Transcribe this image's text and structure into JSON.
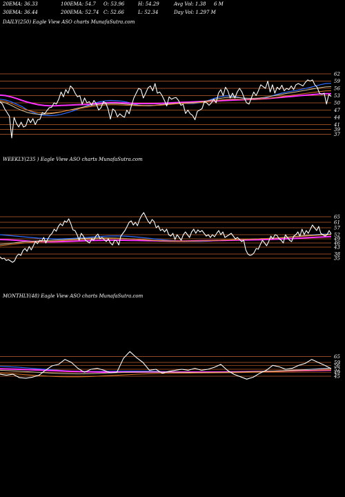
{
  "header": {
    "row1": [
      "20EMA: 36.33",
      "100EMA: 54.7",
      "O: 53.96",
      "H: 54.29",
      "Avg Vol: 1.38",
      "6  M"
    ],
    "row2": [
      "30EMA: 36.44",
      "200EMA: 52.74",
      "C: 52.66",
      "L: 52.34",
      "Day Vol: 1.297 M"
    ]
  },
  "colors": {
    "background": "#000000",
    "price": "#ffffff",
    "level_line": "#c0602a",
    "ema_blue": "#2f6bff",
    "ema_magenta": "#ff33ff",
    "ema_tan": "#d9c9a0",
    "ema_orange": "#e07a2a",
    "ema_grey": "#bbbbbb"
  },
  "chart_data": [
    {
      "type": "line",
      "panel": "daily",
      "label": "DAILY(250) Eagle  View  ASO charts MunafaSutra.com",
      "ticks": [
        "62",
        "59",
        "56",
        "53",
        "50",
        "47",
        "44",
        "41",
        "39",
        "37"
      ],
      "ylim": [
        34,
        64
      ],
      "series": [
        {
          "role": "price",
          "values": [
            50.5,
            49.5,
            47.5,
            46,
            44.5,
            35.5,
            44,
            41.5,
            40,
            42,
            40,
            40.5,
            43.5,
            41.8,
            43.5,
            41,
            43,
            43.2,
            46,
            45.5,
            46.8,
            48,
            48.2,
            50,
            49.5,
            51.5,
            54.5,
            52.5,
            55.5,
            54,
            57,
            56,
            54,
            52.5,
            53,
            49.5,
            52,
            50,
            50.5,
            49,
            51,
            49.5,
            47,
            48,
            50.5,
            50,
            47.5,
            43.3,
            47.5,
            46.7,
            44.2,
            45.5,
            44.6,
            44,
            47,
            45.5,
            49,
            52,
            54,
            56,
            55.5,
            52,
            54,
            56.2,
            57,
            55,
            58,
            54,
            54.5,
            53,
            51,
            48.7,
            52.5,
            51.5,
            52,
            52.2,
            51,
            49,
            49.4,
            45.6,
            47,
            45.5,
            44.8,
            43,
            46.5,
            47,
            47.6,
            50.5,
            50,
            49,
            50,
            51.5,
            50,
            54,
            55.5,
            53,
            56.5,
            55,
            52,
            54,
            52,
            54.5,
            56,
            54.5,
            52,
            50,
            49.5,
            52,
            54.5,
            53,
            55,
            57.5,
            56.7,
            56,
            59,
            54.5,
            57.5,
            54,
            56.5,
            55.5,
            57.3,
            55,
            56,
            55.5,
            57,
            55.5,
            57.5,
            58,
            57.5,
            57,
            58.5,
            59.5,
            59,
            59.5,
            57.5,
            56.5,
            54,
            53.5,
            54,
            49.5,
            53.5,
            52.66
          ]
        },
        {
          "role": "ema",
          "color": "ema_blue",
          "values": [
            51.5,
            51.2,
            50.5,
            49.5,
            48.5,
            47,
            46,
            45.2,
            44.8,
            44.7,
            44.8,
            45.2,
            45.8,
            46.5,
            47.3,
            48.2,
            49,
            49.8,
            50.4,
            50.8,
            51,
            50.9,
            50.7,
            50.3,
            49.7,
            49.1,
            48.8,
            48.7,
            48.9,
            49.2,
            49.5,
            49.8,
            49.9,
            49.8,
            49.7,
            49.7,
            50,
            50.5,
            51.2,
            52,
            52.6,
            52.9,
            52.8,
            52.4,
            51.9,
            51.5,
            51.3,
            51.5,
            52,
            52.7,
            53.4,
            54,
            54.5,
            54.9,
            55.3,
            55.8,
            56.3,
            56.9,
            57.5,
            58,
            58.1
          ]
        },
        {
          "role": "ema",
          "color": "ema_magenta",
          "values": [
            53.2,
            53,
            52.5,
            51.8,
            51,
            50.3,
            49.7,
            49.2,
            48.9,
            48.8,
            48.8,
            48.9,
            49,
            49.1,
            49.2,
            49.3,
            49.4,
            49.6,
            49.8,
            50,
            50.1,
            50.1,
            50,
            49.9,
            49.8,
            49.7,
            49.7,
            49.7,
            49.7,
            49.8,
            49.9,
            50,
            50.1,
            50.2,
            50.3,
            50.4,
            50.5,
            50.6,
            50.7,
            50.8,
            50.9,
            51,
            51.1,
            51.2,
            51.3,
            51.4,
            51.5,
            51.6,
            51.7,
            51.9,
            52.1,
            52.3,
            52.5,
            52.7,
            52.9,
            53.1,
            53.3,
            53.5,
            53.7,
            53.8,
            53.8
          ]
        },
        {
          "role": "ema",
          "color": "ema_tan",
          "values": [
            50.5,
            50,
            49,
            47.8,
            46.8,
            46,
            45.5,
            45.3,
            45.3,
            45.5,
            45.8,
            46.2,
            46.7,
            47.2,
            47.7,
            48.2,
            48.7,
            49.1,
            49.4,
            49.6,
            49.7,
            49.7,
            49.6,
            49.4,
            49.2,
            49,
            48.9,
            48.9,
            49,
            49.2,
            49.4,
            49.6,
            49.8,
            49.9,
            50,
            50.1,
            50.3,
            50.6,
            51,
            51.5,
            51.9,
            52.2,
            52.3,
            52.2,
            52,
            51.9,
            51.9,
            52,
            52.3,
            52.7,
            53.1,
            53.5,
            53.9,
            54.3,
            54.7,
            55.1,
            55.5,
            55.9,
            56.3,
            56.6,
            56.7
          ]
        },
        {
          "role": "ema",
          "color": "ema_orange",
          "values": [
            51,
            50.6,
            49.8,
            48.8,
            47.8,
            47,
            46.4,
            46,
            45.8,
            45.8,
            46,
            46.3,
            46.7,
            47.1,
            47.5,
            47.9,
            48.3,
            48.6,
            48.9,
            49.1,
            49.2,
            49.2,
            49.1,
            49,
            48.9,
            48.8,
            48.8,
            48.8,
            48.9,
            49,
            49.2,
            49.4,
            49.6,
            49.7,
            49.8,
            49.9,
            50.1,
            50.3,
            50.6,
            50.9,
            51.2,
            51.4,
            51.5,
            51.5,
            51.4,
            51.4,
            51.4,
            51.5,
            51.7,
            52,
            52.3,
            52.6,
            52.9,
            53.2,
            53.5,
            53.8,
            54.1,
            54.4,
            54.7,
            54.9,
            55
          ]
        }
      ]
    },
    {
      "type": "line",
      "panel": "weekly",
      "label": "WEEKLY(235               ) Eagle  View  ASO charts MunafaSutra.com",
      "ticks": [
        "65",
        "61",
        "57",
        "52",
        "49",
        "46",
        "43",
        "38",
        "35"
      ],
      "ylim": [
        28,
        72
      ],
      "series": [
        {
          "role": "price",
          "values": [
            36,
            34.5,
            35,
            33.3,
            34,
            33,
            32,
            33,
            36.5,
            38,
            37,
            40.5,
            42,
            40,
            43.5,
            41,
            44,
            47,
            45.5,
            48,
            47.5,
            50,
            46,
            49,
            51.5,
            53,
            56,
            54.5,
            58,
            60,
            58.5,
            62,
            61,
            63.5,
            60,
            55.5,
            55,
            52,
            48,
            53,
            51,
            48,
            47,
            46,
            49,
            48,
            51,
            52.5,
            49,
            50,
            48.5,
            47,
            49,
            46,
            44.5,
            48,
            47.5,
            44.5,
            51,
            53,
            55,
            58,
            61,
            62,
            59,
            61,
            58.5,
            63,
            66,
            68,
            65,
            62,
            60,
            63,
            61.5,
            57,
            58.5,
            55,
            56,
            54,
            56,
            52,
            51,
            53,
            48.5,
            52,
            50,
            48,
            52,
            54,
            52,
            50,
            54,
            56,
            53,
            55.5,
            54,
            55,
            53,
            51,
            52,
            50,
            52,
            50.5,
            53,
            55,
            52,
            54,
            50,
            51,
            52,
            53,
            51,
            49,
            50,
            48.5,
            47,
            48,
            41,
            38,
            37,
            37.5,
            39,
            42,
            41.5,
            45,
            48,
            46,
            44,
            47,
            51,
            49,
            52,
            51.5,
            49,
            48,
            46,
            52,
            50,
            48,
            47,
            51,
            52,
            54,
            51,
            56,
            52,
            55,
            53,
            56,
            59,
            57,
            55,
            58,
            53,
            52,
            51,
            52,
            55,
            52.66
          ]
        },
        {
          "role": "ema",
          "color": "ema_blue",
          "values": [
            52,
            51.5,
            51,
            50.5,
            50,
            49.5,
            49.2,
            49,
            49,
            49.2,
            49.5,
            49.9,
            50.3,
            50.7,
            51,
            51.1,
            51,
            50.7,
            50.2,
            49.6,
            49,
            48.4,
            47.9,
            47.5,
            47.2,
            47.1,
            47.1,
            47.3,
            47.6,
            47.9,
            48.2,
            48.5,
            48.7,
            48.9,
            49,
            49.2,
            49.5,
            49.9,
            50.4,
            51,
            51.6,
            52.1,
            52.4,
            52.5
          ]
        },
        {
          "role": "ema",
          "color": "ema_magenta",
          "values": [
            48.5,
            48.3,
            48,
            47.6,
            47.2,
            47,
            46.9,
            46.9,
            47,
            47.2,
            47.4,
            47.6,
            47.8,
            47.9,
            48,
            48,
            48,
            47.9,
            47.8,
            47.7,
            47.6,
            47.5,
            47.4,
            47.4,
            47.4,
            47.5,
            47.6,
            47.7,
            47.8,
            47.9,
            48,
            48.1,
            48.2,
            48.3,
            48.4,
            48.6,
            48.8,
            49,
            49.2,
            49.5,
            49.8,
            50.1,
            50.4,
            50.6
          ]
        },
        {
          "role": "ema",
          "color": "ema_tan",
          "values": [
            45,
            45.5,
            46.2,
            46.8,
            47.2,
            47.5,
            47.8,
            48.1,
            48.4,
            48.7,
            49,
            49.3,
            49.5,
            49.6,
            49.6,
            49.5,
            49.3,
            49,
            48.6,
            48.2,
            47.8,
            47.5,
            47.3,
            47.2,
            47.2,
            47.3,
            47.5,
            47.7,
            47.9,
            48.1,
            48.3,
            48.5,
            48.7,
            48.9,
            49.1,
            49.4,
            49.7,
            50.1,
            50.5,
            51,
            51.5,
            51.9,
            52.2,
            52.3
          ]
        },
        {
          "role": "ema",
          "color": "ema_orange",
          "values": [
            44,
            44.6,
            45.3,
            45.9,
            46.4,
            46.8,
            47.1,
            47.4,
            47.7,
            48,
            48.3,
            48.6,
            48.9,
            49.1,
            49.2,
            49.2,
            49.1,
            48.9,
            48.6,
            48.3,
            48,
            47.7,
            47.5,
            47.4,
            47.4,
            47.4,
            47.5,
            47.7,
            47.9,
            48.1,
            48.3,
            48.5,
            48.7,
            48.9,
            49.1,
            49.3,
            49.6,
            49.9,
            50.3,
            50.7,
            51.1,
            51.5,
            51.8,
            52
          ]
        }
      ]
    },
    {
      "type": "line",
      "panel": "monthly",
      "label": "MONTHLY(48) Eagle  View  ASO charts MunafaSutra.com",
      "ticks": [
        "65",
        "59",
        "56",
        "52",
        "49",
        "45"
      ],
      "ylim": [
        24,
        80
      ],
      "series": [
        {
          "role": "price",
          "values": [
            47,
            46,
            47,
            43.5,
            43,
            44,
            46,
            51,
            55.5,
            57,
            62,
            59,
            53,
            49,
            52,
            53,
            51,
            48.5,
            49,
            63,
            70,
            64,
            59,
            51,
            52,
            48,
            50,
            51,
            52,
            51,
            53,
            51,
            52,
            54,
            57,
            51,
            47,
            44.5,
            42,
            44,
            48,
            51,
            56,
            54.5,
            52,
            53,
            56,
            58,
            62,
            59,
            56,
            52.66
          ]
        },
        {
          "role": "ema",
          "color": "ema_blue",
          "values": [
            55,
            54.5,
            54,
            53.2,
            52.4,
            51.7,
            51,
            50.4,
            50,
            49.8,
            49.8,
            49.9,
            50.1,
            50.2,
            50.2,
            50.1,
            49.9,
            49.7,
            49.5,
            49.3,
            49.1,
            49,
            49,
            49.1,
            49.2,
            49.4,
            49.6,
            49.8,
            50.1,
            50.5,
            51,
            51.5,
            52.1,
            52.7,
            53.2
          ]
        },
        {
          "role": "ema",
          "color": "ema_magenta",
          "values": [
            52.5,
            52.3,
            52,
            51.6,
            51.2,
            50.8,
            50.4,
            50,
            49.7,
            49.5,
            49.3,
            49.2,
            49.2,
            49.2,
            49.2,
            49.2,
            49.2,
            49.2,
            49.2,
            49.2,
            49.2,
            49.2,
            49.2,
            49.3,
            49.4,
            49.5,
            49.6,
            49.7,
            49.9,
            50.1,
            50.3,
            50.5,
            50.7,
            50.9,
            51
          ]
        },
        {
          "role": "ema",
          "color": "ema_tan",
          "values": [
            51,
            50.6,
            50.1,
            49.5,
            48.9,
            48.3,
            47.8,
            47.5,
            47.4,
            47.5,
            47.8,
            48.2,
            48.6,
            48.9,
            49.1,
            49.2,
            49.2,
            49.1,
            49,
            48.9,
            48.8,
            48.8,
            48.9,
            49,
            49.2,
            49.4,
            49.6,
            49.9,
            50.2,
            50.6,
            51,
            51.5,
            52,
            52.5,
            53
          ]
        },
        {
          "role": "ema",
          "color": "ema_orange",
          "values": [
            48,
            47.6,
            47,
            46.3,
            45.6,
            45,
            44.6,
            44.4,
            44.4,
            44.6,
            45,
            45.5,
            46,
            46.5,
            47,
            47.4,
            47.7,
            47.9,
            48,
            48.1,
            48.2,
            48.3,
            48.4,
            48.5,
            48.6,
            48.8,
            49,
            49.2,
            49.5,
            49.8,
            50.1,
            50.4,
            50.7,
            51,
            51.3
          ]
        }
      ]
    }
  ]
}
